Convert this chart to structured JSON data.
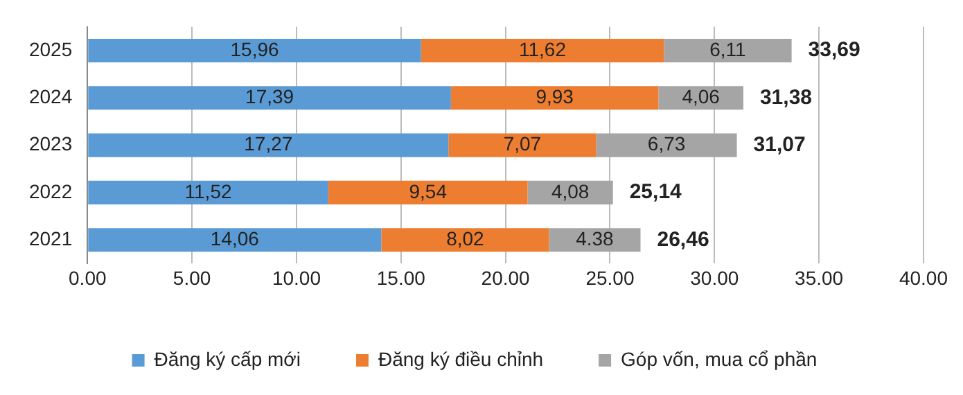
{
  "chart_data": {
    "type": "bar",
    "orientation": "horizontal",
    "stacked": true,
    "categories": [
      "2025",
      "2024",
      "2023",
      "2022",
      "2021"
    ],
    "series": [
      {
        "name": "Đăng ký cấp mới",
        "color": "#5b9bd5",
        "values": [
          15.96,
          17.39,
          17.27,
          11.52,
          14.06
        ],
        "value_labels": [
          "15,96",
          "17,39",
          "17,27",
          "11,52",
          "14,06"
        ]
      },
      {
        "name": "Đăng ký điều chỉnh",
        "color": "#ed7d31",
        "values": [
          11.62,
          9.93,
          7.07,
          9.54,
          8.02
        ],
        "value_labels": [
          "11,62",
          "9,93",
          "7,07",
          "9,54",
          "8,02"
        ]
      },
      {
        "name": "Góp vốn, mua cổ phần",
        "color": "#a5a5a5",
        "values": [
          6.11,
          4.06,
          6.73,
          4.08,
          4.38
        ],
        "value_labels": [
          "6,11",
          "4,06",
          "6,73",
          "4,08",
          "4.38"
        ]
      }
    ],
    "totals": [
      "33,69",
      "31,38",
      "31,07",
      "25,14",
      "26,46"
    ],
    "xlim": [
      0,
      40
    ],
    "xticks": [
      {
        "value": 0,
        "label": "0.00"
      },
      {
        "value": 5,
        "label": "5.00"
      },
      {
        "value": 10,
        "label": "10.00"
      },
      {
        "value": 15,
        "label": "15.00"
      },
      {
        "value": 20,
        "label": "20.00"
      },
      {
        "value": 25,
        "label": "25.00"
      },
      {
        "value": 30,
        "label": "30.00"
      },
      {
        "value": 35,
        "label": "35.00"
      },
      {
        "value": 40,
        "label": "40.00"
      }
    ],
    "grid": "x",
    "legend": "bottom"
  }
}
